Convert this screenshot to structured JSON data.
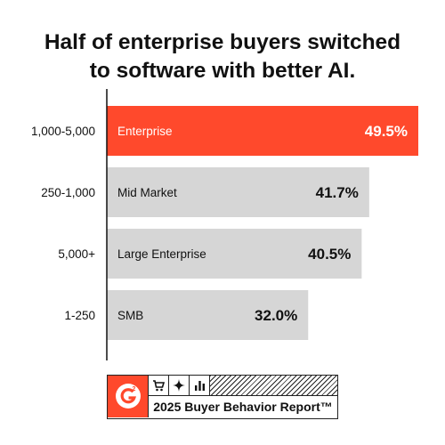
{
  "title_lines": [
    "Half of enterprise buyers switched",
    "to software with better AI."
  ],
  "colors": {
    "highlight": "#ff492c",
    "bar": "#d6d6d6",
    "axis": "#111111"
  },
  "chart_data": {
    "type": "bar",
    "orientation": "horizontal",
    "title": "Half of enterprise buyers switched to software with better AI.",
    "categories": [
      "1,000-5,000",
      "250-1,000",
      "5,000+",
      "1-250"
    ],
    "bar_labels": [
      "Enterprise",
      "Mid Market",
      "Large Enterprise",
      "SMB"
    ],
    "values": [
      49.5,
      41.7,
      40.5,
      32.0
    ],
    "value_labels": [
      "49.5%",
      "41.7%",
      "40.5%",
      "32.0%"
    ],
    "highlight_index": 0,
    "xlim": [
      0,
      49.5
    ],
    "grid": false,
    "legend": "none"
  },
  "badge": {
    "logo_icon": "g2-logo-icon",
    "icons": [
      "cart-icon",
      "sparkle-icon",
      "bar-chart-icon"
    ],
    "text": "2025 Buyer Behavior Report™"
  }
}
